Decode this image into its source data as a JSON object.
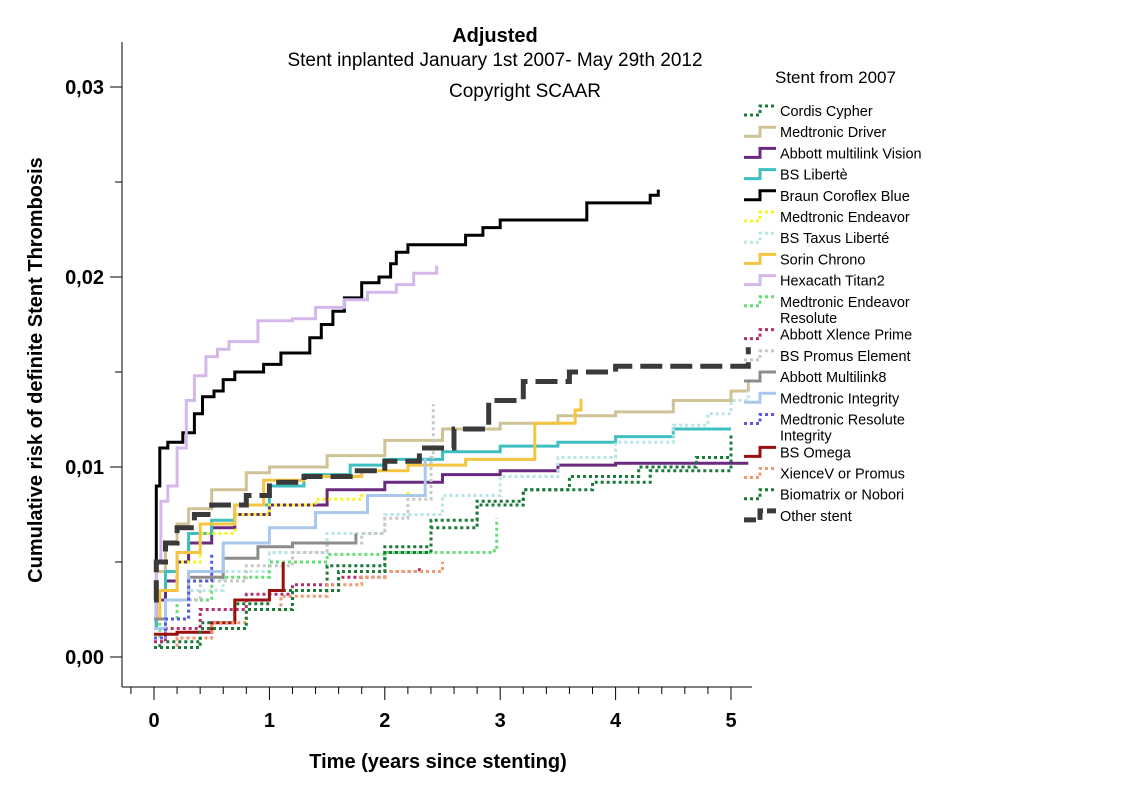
{
  "chart_data": {
    "type": "line",
    "title": "Adjusted",
    "subtitle_lines": [
      "Stent inplanted January 1st 2007- May 29th 2012",
      "Copyright SCAAR"
    ],
    "xlabel": "Time (years since stenting)",
    "ylabel": "Cumulative risk of definite Stent Thrombosis",
    "xlim": [
      -0.25,
      5.2
    ],
    "ylim": [
      -0.0015,
      0.0325
    ],
    "x_ticks": [
      0,
      1,
      2,
      3,
      4,
      5
    ],
    "x_tick_labels": [
      "0",
      "1",
      "2",
      "3",
      "4",
      "5"
    ],
    "y_ticks": [
      0.0,
      0.01,
      0.02,
      0.03
    ],
    "y_tick_labels": [
      "0,00",
      "0,01",
      "0,02",
      "0,03"
    ],
    "grid": false,
    "legend_title": "Stent from 2007",
    "legend_position": "right",
    "series": [
      {
        "name": "Cordis Cypher",
        "color": "#1a7a3a",
        "dash": "3,3",
        "width": 3,
        "x": [
          0,
          0.05,
          0.4,
          0.7,
          1.0,
          1.5,
          2.0,
          2.4,
          2.8,
          3.2,
          3.8,
          4.3,
          4.7,
          5.0
        ],
        "y": [
          0.0005,
          0.0008,
          0.0018,
          0.0028,
          0.0035,
          0.0048,
          0.0058,
          0.0072,
          0.0082,
          0.0088,
          0.0092,
          0.0098,
          0.0098,
          0.0118
        ]
      },
      {
        "name": "Medtronic Driver",
        "color": "#cfc395",
        "dash": "",
        "width": 3,
        "x": [
          0,
          0.02,
          0.1,
          0.2,
          0.3,
          0.5,
          0.8,
          1.0,
          1.5,
          2.0,
          2.5,
          3.0,
          3.5,
          4.0,
          4.5,
          5.0,
          5.15
        ],
        "y": [
          0.002,
          0.0045,
          0.006,
          0.007,
          0.0078,
          0.0088,
          0.0097,
          0.01,
          0.0106,
          0.0114,
          0.012,
          0.0123,
          0.0127,
          0.0129,
          0.0135,
          0.014,
          0.0145
        ]
      },
      {
        "name": "Abbott multilink Vision",
        "color": "#6a2a80",
        "dash": "",
        "width": 3,
        "x": [
          0,
          0.02,
          0.1,
          0.2,
          0.3,
          0.5,
          0.7,
          1.0,
          1.5,
          2.0,
          2.5,
          3.0,
          3.5,
          4.0,
          5.15
        ],
        "y": [
          0.0015,
          0.003,
          0.004,
          0.005,
          0.006,
          0.0068,
          0.0075,
          0.008,
          0.0088,
          0.0092,
          0.0096,
          0.0098,
          0.0101,
          0.0102,
          0.0102
        ]
      },
      {
        "name": "BS Libertè",
        "color": "#3fbfbf",
        "dash": "",
        "width": 3,
        "x": [
          0,
          0.02,
          0.1,
          0.2,
          0.3,
          0.5,
          0.7,
          1.0,
          1.3,
          1.7,
          2.0,
          2.5,
          3.0,
          3.5,
          4.0,
          4.5,
          5.0
        ],
        "y": [
          0.0015,
          0.0035,
          0.0045,
          0.0055,
          0.0065,
          0.0072,
          0.008,
          0.009,
          0.0096,
          0.0101,
          0.0104,
          0.0108,
          0.0111,
          0.0113,
          0.0116,
          0.012,
          0.012
        ]
      },
      {
        "name": "Braun Coroflex Blue",
        "color": "#000000",
        "dash": "",
        "width": 3,
        "x": [
          0,
          0.02,
          0.05,
          0.12,
          0.25,
          0.35,
          0.42,
          0.52,
          0.6,
          0.7,
          0.95,
          1.1,
          1.35,
          1.45,
          1.55,
          1.65,
          1.8,
          1.95,
          2.05,
          2.1,
          2.2,
          2.7,
          2.85,
          3.0,
          3.75,
          4.3,
          4.37
        ],
        "y": [
          0.005,
          0.009,
          0.011,
          0.0113,
          0.0118,
          0.0128,
          0.0137,
          0.014,
          0.0146,
          0.015,
          0.0154,
          0.016,
          0.0168,
          0.0175,
          0.0182,
          0.0189,
          0.0197,
          0.02,
          0.0207,
          0.0213,
          0.0217,
          0.0222,
          0.0226,
          0.023,
          0.0239,
          0.0243,
          0.0246
        ]
      },
      {
        "name": "Medtronic Endeavor",
        "color": "#f5f520",
        "dash": "3,3",
        "width": 3,
        "x": [
          0,
          0.05,
          0.2,
          0.4,
          0.7,
          1.0,
          1.4,
          1.8,
          2.2
        ],
        "y": [
          0.002,
          0.0035,
          0.005,
          0.0065,
          0.0075,
          0.008,
          0.0083,
          0.0085,
          0.0087
        ]
      },
      {
        "name": "BS Taxus Liberté",
        "color": "#b8e6e6",
        "dash": "3,3",
        "width": 3,
        "x": [
          0,
          0.1,
          0.3,
          0.6,
          1.0,
          1.5,
          2.0,
          2.5,
          3.0,
          3.5,
          4.0,
          4.5,
          4.8,
          5.0,
          5.15
        ],
        "y": [
          0.001,
          0.002,
          0.0035,
          0.0045,
          0.0055,
          0.0065,
          0.0075,
          0.0085,
          0.0095,
          0.0105,
          0.0113,
          0.0122,
          0.0128,
          0.0135,
          0.014
        ]
      },
      {
        "name": "Sorin Chrono",
        "color": "#f5c542",
        "dash": "",
        "width": 3,
        "x": [
          0,
          0.05,
          0.2,
          0.4,
          0.7,
          0.95,
          1.3,
          1.8,
          2.2,
          2.7,
          3.3,
          3.65,
          3.7
        ],
        "y": [
          0.002,
          0.0035,
          0.0055,
          0.007,
          0.008,
          0.0093,
          0.0095,
          0.0098,
          0.0101,
          0.0104,
          0.0123,
          0.013,
          0.0136
        ]
      },
      {
        "name": "Hexacath Titan2",
        "color": "#d4b8ec",
        "dash": "",
        "width": 3,
        "x": [
          0,
          0.02,
          0.06,
          0.12,
          0.2,
          0.28,
          0.35,
          0.45,
          0.55,
          0.65,
          0.9,
          1.2,
          1.4,
          1.65,
          1.85,
          2.1,
          2.25,
          2.45
        ],
        "y": [
          0.002,
          0.005,
          0.0082,
          0.009,
          0.011,
          0.0135,
          0.0148,
          0.0158,
          0.0162,
          0.0166,
          0.0177,
          0.0178,
          0.0184,
          0.0188,
          0.0192,
          0.0196,
          0.0202,
          0.0206
        ]
      },
      {
        "name": "Medtronic Endeavor Resolute",
        "color": "#66dd77",
        "dash": "3,3",
        "width": 3,
        "x": [
          0,
          0.05,
          0.2,
          0.5,
          1.0,
          1.5,
          2.0,
          2.5,
          2.95,
          2.97
        ],
        "y": [
          0.001,
          0.002,
          0.003,
          0.0042,
          0.005,
          0.0054,
          0.0055,
          0.0055,
          0.0056,
          0.0073
        ]
      },
      {
        "name": "Abbott Xlence Prime",
        "color": "#b03070",
        "dash": "3,3",
        "width": 3,
        "x": [
          0,
          0.1,
          0.4,
          0.8,
          1.2,
          1.6,
          2.0,
          2.3
        ],
        "y": [
          0.0008,
          0.0015,
          0.0025,
          0.0033,
          0.0038,
          0.0042,
          0.0045,
          0.0047
        ]
      },
      {
        "name": "BS Promus Element",
        "color": "#c8c8c8",
        "dash": "3,3",
        "width": 3,
        "x": [
          0,
          0.1,
          0.4,
          0.8,
          1.2,
          1.5,
          1.8,
          2.0,
          2.2,
          2.4,
          2.42
        ],
        "y": [
          0.002,
          0.003,
          0.004,
          0.0048,
          0.0055,
          0.006,
          0.0065,
          0.0073,
          0.0083,
          0.0105,
          0.0133
        ]
      },
      {
        "name": "Abbott Multilink8",
        "color": "#8c8c8c",
        "dash": "",
        "width": 3,
        "x": [
          0,
          0.1,
          0.3,
          0.6,
          0.9,
          1.2,
          1.6,
          1.75
        ],
        "y": [
          0.002,
          0.003,
          0.0042,
          0.0052,
          0.0058,
          0.006,
          0.006,
          0.0065
        ]
      },
      {
        "name": "Medtronic Integrity",
        "color": "#a8c8ec",
        "dash": "",
        "width": 3,
        "x": [
          0,
          0.1,
          0.3,
          0.6,
          1.0,
          1.4,
          1.85,
          2.3,
          2.35
        ],
        "y": [
          0.0015,
          0.003,
          0.0045,
          0.006,
          0.0068,
          0.0076,
          0.0085,
          0.0085,
          0.0105
        ]
      },
      {
        "name": "Medtronic Resolute Integrity",
        "color": "#5a5ae0",
        "dash": "3,3",
        "width": 3,
        "x": [
          0,
          0.1,
          0.3,
          0.5
        ],
        "y": [
          0.001,
          0.002,
          0.004,
          0.0055
        ]
      },
      {
        "name": "BS Omega",
        "color": "#9a1010",
        "dash": "",
        "width": 3,
        "x": [
          0,
          0.2,
          0.5,
          0.7,
          1.0,
          1.12
        ],
        "y": [
          0.0012,
          0.0013,
          0.0018,
          0.003,
          0.0035,
          0.005
        ]
      },
      {
        "name": "XienceV or Promus",
        "color": "#f09a70",
        "dash": "3,3",
        "width": 3,
        "x": [
          0,
          0.2,
          0.5,
          0.8,
          1.1,
          1.5,
          1.8,
          2.0,
          2.5
        ],
        "y": [
          0.0005,
          0.001,
          0.0018,
          0.0025,
          0.0032,
          0.0038,
          0.0042,
          0.0045,
          0.005
        ]
      },
      {
        "name": "Biomatrix or Nobori",
        "color": "#1a7a3a",
        "dash": "3,3",
        "width": 3,
        "x": [
          0,
          0.4,
          0.8,
          1.2,
          1.6,
          2.0,
          2.4,
          2.8,
          3.2,
          3.6,
          4.2,
          4.7,
          5.0
        ],
        "y": [
          0.0005,
          0.0015,
          0.0025,
          0.0035,
          0.0045,
          0.0055,
          0.0068,
          0.008,
          0.0088,
          0.0095,
          0.01,
          0.0105,
          0.0118
        ]
      },
      {
        "name": "Other stent",
        "color": "#3a3a3a",
        "dash": "22,8",
        "width": 5,
        "x": [
          0,
          0.02,
          0.1,
          0.2,
          0.35,
          0.5,
          0.8,
          1.0,
          1.3,
          1.7,
          2.0,
          2.3,
          2.6,
          2.9,
          3.2,
          3.6,
          4.0,
          4.4,
          4.8,
          5.15
        ],
        "y": [
          0.003,
          0.005,
          0.006,
          0.0068,
          0.0075,
          0.008,
          0.0085,
          0.0092,
          0.0095,
          0.0098,
          0.0103,
          0.011,
          0.012,
          0.0135,
          0.0145,
          0.015,
          0.0153,
          0.0153,
          0.0153,
          0.0163
        ]
      }
    ]
  }
}
